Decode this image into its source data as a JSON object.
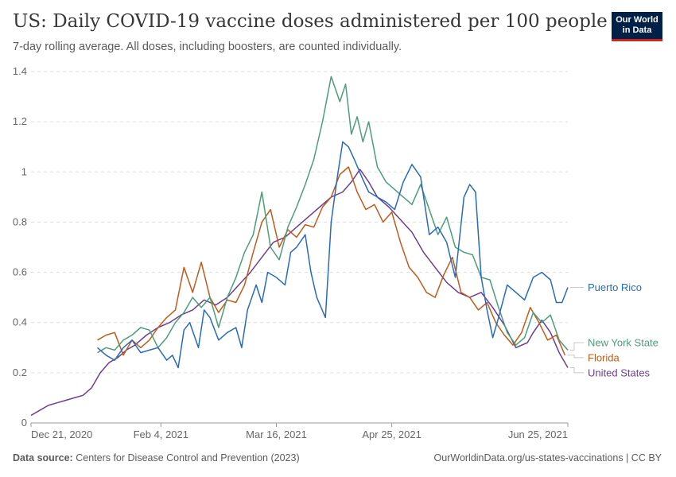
{
  "header": {
    "title": "US: Daily COVID-19 vaccine doses administered per 100 people",
    "subtitle": "7-day rolling average. All doses, including boosters, are counted individually."
  },
  "logo": {
    "line1": "Our World",
    "line2": "in Data"
  },
  "footer": {
    "source_label": "Data source:",
    "source_text": "Centers for Disease Control and Prevention (2023)",
    "url_license": "OurWorldinData.org/us-states-vaccinations | CC BY"
  },
  "chart_data": {
    "type": "line",
    "title": "US: Daily COVID-19 vaccine doses administered per 100 people",
    "xlabel": "",
    "ylabel": "",
    "x_unit": "days since Dec 21, 2020",
    "xlim": [
      0,
      186
    ],
    "ylim": [
      0,
      1.4
    ],
    "y_ticks": [
      0,
      0.2,
      0.4,
      0.6,
      0.8,
      1,
      1.2,
      1.4
    ],
    "y_tick_labels": [
      "0",
      "0.2",
      "0.4",
      "0.6",
      "0.8",
      "1",
      "1.2",
      "1.4"
    ],
    "x_ticks": [
      0,
      45,
      85,
      125,
      186
    ],
    "x_tick_labels": [
      "Dec 21, 2020",
      "Feb 4, 2021",
      "Mar 16, 2021",
      "Apr 25, 2021",
      "Jun 25, 2021"
    ],
    "grid": true,
    "series": [
      {
        "name": "United States",
        "color": "#6d3e91",
        "x": [
          0,
          3,
          6,
          9,
          12,
          15,
          18,
          21,
          24,
          27,
          30,
          33,
          36,
          40,
          44,
          48,
          52,
          56,
          60,
          64,
          68,
          72,
          76,
          80,
          84,
          88,
          92,
          96,
          100,
          104,
          108,
          111,
          114,
          117,
          120,
          124,
          128,
          132,
          136,
          140,
          144,
          148,
          152,
          156,
          160,
          164,
          168,
          172,
          174,
          177,
          180,
          183,
          186
        ],
        "y": [
          0.03,
          0.05,
          0.07,
          0.08,
          0.09,
          0.1,
          0.11,
          0.14,
          0.2,
          0.24,
          0.26,
          0.29,
          0.31,
          0.35,
          0.38,
          0.4,
          0.43,
          0.45,
          0.49,
          0.47,
          0.5,
          0.55,
          0.6,
          0.66,
          0.72,
          0.74,
          0.78,
          0.82,
          0.86,
          0.9,
          0.92,
          0.96,
          1.01,
          0.96,
          0.9,
          0.86,
          0.81,
          0.76,
          0.68,
          0.62,
          0.56,
          0.52,
          0.5,
          0.52,
          0.46,
          0.39,
          0.3,
          0.32,
          0.36,
          0.41,
          0.36,
          0.28,
          0.22
        ]
      },
      {
        "name": "Florida",
        "color": "#c15b1a",
        "x": [
          23,
          26,
          29,
          32,
          35,
          38,
          41,
          44,
          47,
          50,
          53,
          56,
          59,
          62,
          65,
          68,
          71,
          74,
          77,
          80,
          83,
          86,
          89,
          92,
          95,
          98,
          101,
          104,
          107,
          110,
          113,
          116,
          119,
          122,
          125,
          128,
          131,
          134,
          137,
          140,
          143,
          146,
          149,
          152,
          155,
          158,
          161,
          164,
          167,
          170,
          173,
          176,
          179,
          182,
          185
        ],
        "y": [
          0.33,
          0.35,
          0.36,
          0.27,
          0.33,
          0.3,
          0.33,
          0.38,
          0.42,
          0.45,
          0.62,
          0.52,
          0.64,
          0.5,
          0.44,
          0.49,
          0.48,
          0.55,
          0.68,
          0.8,
          0.85,
          0.7,
          0.77,
          0.74,
          0.79,
          0.78,
          0.86,
          0.9,
          0.99,
          1.02,
          0.92,
          0.85,
          0.87,
          0.8,
          0.84,
          0.72,
          0.62,
          0.58,
          0.52,
          0.5,
          0.59,
          0.66,
          0.52,
          0.5,
          0.45,
          0.48,
          0.4,
          0.35,
          0.31,
          0.36,
          0.46,
          0.4,
          0.33,
          0.35,
          0.27
        ]
      },
      {
        "name": "New York State",
        "color": "#4c9e7a",
        "x": [
          23,
          26,
          29,
          32,
          35,
          38,
          41,
          44,
          47,
          50,
          53,
          56,
          59,
          62,
          65,
          68,
          71,
          74,
          77,
          80,
          83,
          86,
          89,
          92,
          95,
          98,
          101,
          104,
          107,
          109,
          111,
          113,
          115,
          117,
          120,
          123,
          126,
          129,
          132,
          135,
          138,
          141,
          144,
          147,
          150,
          153,
          156,
          159,
          162,
          165,
          168,
          171,
          174,
          177,
          180,
          183,
          186
        ],
        "y": [
          0.28,
          0.3,
          0.29,
          0.33,
          0.35,
          0.38,
          0.37,
          0.3,
          0.34,
          0.4,
          0.44,
          0.5,
          0.46,
          0.5,
          0.38,
          0.5,
          0.58,
          0.68,
          0.75,
          0.92,
          0.7,
          0.65,
          0.78,
          0.86,
          0.95,
          1.05,
          1.2,
          1.38,
          1.28,
          1.35,
          1.15,
          1.22,
          1.12,
          1.2,
          1.02,
          0.96,
          0.93,
          0.9,
          0.87,
          0.95,
          0.85,
          0.75,
          0.82,
          0.7,
          0.68,
          0.67,
          0.58,
          0.57,
          0.46,
          0.36,
          0.31,
          0.34,
          0.44,
          0.4,
          0.43,
          0.33,
          0.29
        ]
      },
      {
        "name": "Puerto Rico",
        "color": "#286bbb",
        "x": [
          23,
          26,
          29,
          32,
          35,
          38,
          41,
          44,
          47,
          49,
          51,
          53,
          55,
          58,
          60,
          62,
          65,
          68,
          71,
          73,
          75,
          78,
          80,
          82,
          85,
          88,
          90,
          92,
          95,
          97,
          99,
          102,
          104,
          106,
          108,
          110,
          112,
          115,
          117,
          120,
          123,
          126,
          129,
          132,
          135,
          138,
          141,
          144,
          147,
          150,
          152,
          154,
          156,
          158,
          160,
          162,
          165,
          168,
          171,
          174,
          177,
          180,
          182,
          184,
          186
        ],
        "y": [
          0.3,
          0.27,
          0.25,
          0.3,
          0.33,
          0.28,
          0.29,
          0.3,
          0.25,
          0.27,
          0.22,
          0.37,
          0.4,
          0.3,
          0.45,
          0.42,
          0.33,
          0.36,
          0.38,
          0.3,
          0.45,
          0.55,
          0.48,
          0.6,
          0.58,
          0.55,
          0.68,
          0.7,
          0.75,
          0.6,
          0.5,
          0.42,
          0.8,
          0.97,
          1.12,
          1.1,
          1.05,
          0.97,
          0.92,
          0.9,
          0.88,
          0.85,
          0.96,
          1.03,
          0.98,
          0.75,
          0.78,
          0.72,
          0.58,
          0.9,
          0.95,
          0.92,
          0.58,
          0.45,
          0.34,
          0.42,
          0.55,
          0.52,
          0.49,
          0.58,
          0.6,
          0.57,
          0.48,
          0.48,
          0.54
        ]
      }
    ],
    "legend": [
      {
        "name": "Puerto Rico",
        "color": "#286bbb",
        "label_y": 0.54
      },
      {
        "name": "New York State",
        "color": "#4c9e7a",
        "label_y": 0.32
      },
      {
        "name": "Florida",
        "color": "#c15b1a",
        "label_y": 0.26
      },
      {
        "name": "United States",
        "color": "#6d3e91",
        "label_y": 0.2
      }
    ],
    "legend_position": "right"
  }
}
